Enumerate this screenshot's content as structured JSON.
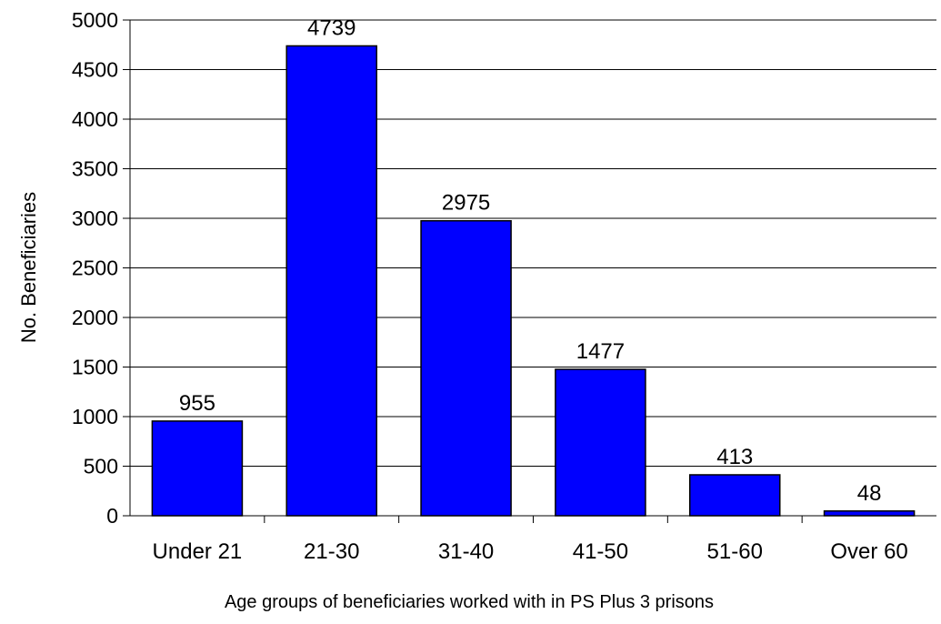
{
  "chart_data": {
    "type": "bar",
    "categories": [
      "Under 21",
      "21-30",
      "31-40",
      "41-50",
      "51-60",
      "Over 60"
    ],
    "values": [
      955,
      4739,
      2975,
      1477,
      413,
      48
    ],
    "data_labels": [
      "955",
      "4739",
      "2975",
      "1477",
      "413",
      "48"
    ],
    "title": "",
    "xlabel": "Age groups of beneficiaries worked with in PS Plus 3 prisons",
    "ylabel": "No. Beneficiaries",
    "ylim": [
      0,
      5000
    ],
    "yticks": [
      0,
      500,
      1000,
      1500,
      2000,
      2500,
      3000,
      3500,
      4000,
      4500,
      5000
    ],
    "ytick_labels": [
      "0",
      "500",
      "1000",
      "1500",
      "2000",
      "2500",
      "3000",
      "3500",
      "4000",
      "4500",
      "5000"
    ],
    "grid": true,
    "legend": "none",
    "colors": {
      "bar_fill": "#0000ff",
      "bar_stroke": "#000000",
      "grid": "#000000",
      "axis": "#000000"
    }
  }
}
